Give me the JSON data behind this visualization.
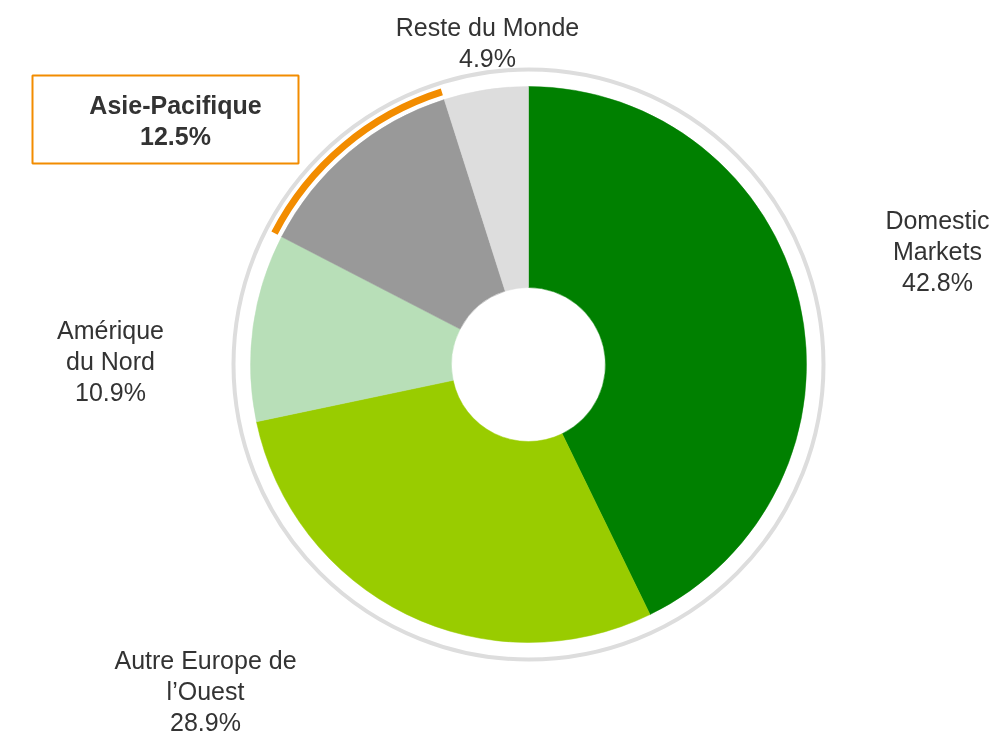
{
  "chart_data": {
    "type": "donut",
    "categories": [
      "Domestic Markets",
      "Autre Europe de l’Ouest",
      "Amérique du Nord",
      "Asie-Pacifique",
      "Reste du Monde"
    ],
    "values": [
      42.8,
      28.9,
      10.9,
      12.5,
      4.9
    ],
    "value_labels": [
      "42.8%",
      "28.9%",
      "10.9%",
      "12.5%",
      "4.9%"
    ],
    "colors": [
      "#008000",
      "#99cc00",
      "#b8dfb8",
      "#999999",
      "#dddddd"
    ]
  }
}
